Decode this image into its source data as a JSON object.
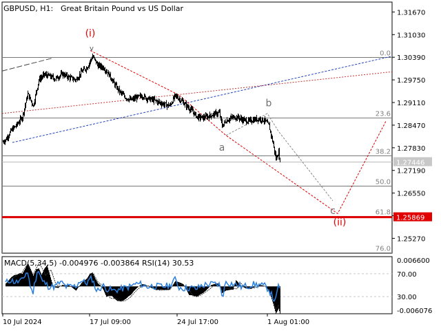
{
  "header": {
    "symbol": "GBPUSD, H1:",
    "description": "Great Britain Pound vs US Dollar"
  },
  "colors": {
    "background": "#ffffff",
    "candles": "#000000",
    "grid": "#c8c8c8",
    "support": "#e00000",
    "wave_path": "#e00000",
    "projection": "#888888",
    "channel_blue": "#2040c0",
    "channel_red": "#c03030",
    "fibo_text": "#808080",
    "macd_hist": "#000000",
    "macd_signal": "#2a7fe0",
    "rsi_line": "#2a7fe0"
  },
  "chart_data": [
    {
      "type": "candlestick",
      "price_axis_ticks": [
        "1.31670",
        "1.31030",
        "1.30390",
        "1.29750",
        "1.29110",
        "1.28470",
        "1.27830",
        "1.27190",
        "1.26550",
        "1.25910",
        "1.25270"
      ],
      "current_price_label": "1.27446",
      "current_price": 1.27446,
      "support_label": "1.25869",
      "support_price": 1.25869,
      "time_axis_labels": [
        "10 Jul 2024",
        "17 Jul 09:00",
        "24 Jul 17:00",
        "1 Aug 01:00"
      ],
      "ylim": [
        1.2485,
        1.3195
      ],
      "fibonacci_levels": [
        {
          "label": "0.0",
          "price": 1.3039
        },
        {
          "label": "23.6",
          "price": 1.2868
        },
        {
          "label": "38.2",
          "price": 1.2762
        },
        {
          "label": "50.0",
          "price": 1.2676
        },
        {
          "label": "61.8",
          "price": 1.259
        },
        {
          "label": "76.0",
          "price": 1.2486
        }
      ],
      "wave_labels": [
        {
          "label": "(i)",
          "x": 131,
          "price": 1.3098,
          "color": "#e00000"
        },
        {
          "label": "a",
          "x": 322,
          "price": 1.2775,
          "color": "#707070"
        },
        {
          "label": "b",
          "x": 390,
          "price": 1.29,
          "color": "#707070"
        },
        {
          "label": "c",
          "x": 483,
          "price": 1.2596,
          "color": "#707070"
        },
        {
          "label": "(ii)",
          "x": 493,
          "price": 1.2564,
          "color": "#e00000"
        }
      ],
      "close_series_description_points": [
        [
          0,
          1.2795
        ],
        [
          8,
          1.2806
        ],
        [
          16,
          1.2832
        ],
        [
          24,
          1.2848
        ],
        [
          32,
          1.287
        ],
        [
          40,
          1.2935
        ],
        [
          48,
          1.2902
        ],
        [
          56,
          1.2975
        ],
        [
          64,
          1.299
        ],
        [
          72,
          1.2985
        ],
        [
          80,
          1.2978
        ],
        [
          90,
          1.2992
        ],
        [
          100,
          1.2982
        ],
        [
          110,
          1.2975
        ],
        [
          118,
          1.2998
        ],
        [
          126,
          1.301
        ],
        [
          134,
          1.3042
        ],
        [
          142,
          1.3015
        ],
        [
          150,
          1.301
        ],
        [
          158,
          1.299
        ],
        [
          166,
          1.2962
        ],
        [
          174,
          1.294
        ],
        [
          182,
          1.2925
        ],
        [
          190,
          1.2918
        ],
        [
          198,
          1.2925
        ],
        [
          206,
          1.293
        ],
        [
          214,
          1.2922
        ],
        [
          222,
          1.2918
        ],
        [
          230,
          1.2912
        ],
        [
          238,
          1.2906
        ],
        [
          246,
          1.2902
        ],
        [
          254,
          1.293
        ],
        [
          262,
          1.2918
        ],
        [
          270,
          1.2902
        ],
        [
          278,
          1.2888
        ],
        [
          286,
          1.287
        ],
        [
          294,
          1.2868
        ],
        [
          302,
          1.2872
        ],
        [
          310,
          1.2878
        ],
        [
          318,
          1.2882
        ],
        [
          322,
          1.2845
        ],
        [
          328,
          1.286
        ],
        [
          336,
          1.2868
        ],
        [
          344,
          1.287
        ],
        [
          352,
          1.2862
        ],
        [
          360,
          1.2858
        ],
        [
          368,
          1.2862
        ],
        [
          376,
          1.2865
        ],
        [
          384,
          1.286
        ],
        [
          390,
          1.2845
        ],
        [
          396,
          1.2795
        ],
        [
          400,
          1.2752
        ],
        [
          404,
          1.277
        ],
        [
          406,
          1.2745
        ]
      ]
    },
    {
      "type": "line",
      "title": "MACD(5,34,5) -0.004976 -0.003864 RSI(14) 30.53",
      "macd_ticks": [
        "0.006600",
        "-0.006076"
      ],
      "rsi_ticks": [
        "70.00",
        "30.00"
      ],
      "macd_ylim": [
        -0.006076,
        0.0066
      ],
      "rsi_ylim": [
        0,
        100
      ]
    }
  ]
}
